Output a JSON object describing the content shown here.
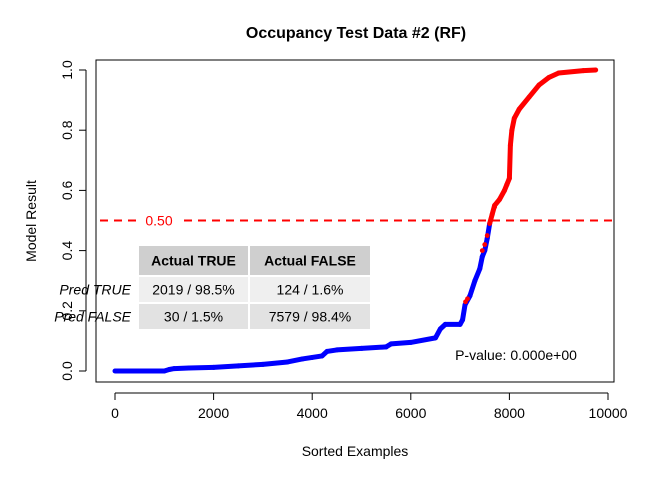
{
  "chart_data": {
    "type": "scatter",
    "title": "Occupancy Test Data #2 (RF)",
    "xlabel": "Sorted Examples",
    "ylabel": "Model Result",
    "xlim": [
      0,
      10000
    ],
    "ylim": [
      0,
      1
    ],
    "x_ticks": [
      0,
      2000,
      4000,
      6000,
      8000,
      10000
    ],
    "x_tick_labels": [
      "0",
      "2000",
      "4000",
      "6000",
      "8000",
      "10000"
    ],
    "y_ticks": [
      0.0,
      0.2,
      0.4,
      0.6,
      0.8,
      1.0
    ],
    "y_tick_labels": [
      "0.0",
      "0.2",
      "0.4",
      "0.6",
      "0.8",
      "1.0"
    ],
    "grid": false,
    "threshold": {
      "value": 0.5,
      "label": "0.50",
      "color": "#ff0000"
    },
    "curve_points": [
      [
        0,
        0.0
      ],
      [
        1000,
        0.0
      ],
      [
        1100,
        0.005
      ],
      [
        1200,
        0.008
      ],
      [
        1500,
        0.01
      ],
      [
        2000,
        0.012
      ],
      [
        2500,
        0.017
      ],
      [
        3000,
        0.022
      ],
      [
        3500,
        0.03
      ],
      [
        3800,
        0.04
      ],
      [
        4000,
        0.045
      ],
      [
        4200,
        0.05
      ],
      [
        4300,
        0.065
      ],
      [
        4500,
        0.07
      ],
      [
        5000,
        0.075
      ],
      [
        5500,
        0.08
      ],
      [
        5600,
        0.09
      ],
      [
        6000,
        0.095
      ],
      [
        6500,
        0.11
      ],
      [
        6600,
        0.14
      ],
      [
        6700,
        0.155
      ],
      [
        7000,
        0.155
      ],
      [
        7050,
        0.17
      ],
      [
        7100,
        0.22
      ],
      [
        7200,
        0.25
      ],
      [
        7300,
        0.3
      ],
      [
        7400,
        0.34
      ],
      [
        7450,
        0.38
      ],
      [
        7500,
        0.4
      ],
      [
        7550,
        0.44
      ],
      [
        7600,
        0.49
      ],
      [
        7650,
        0.52
      ],
      [
        7700,
        0.55
      ],
      [
        7800,
        0.57
      ],
      [
        7900,
        0.6
      ],
      [
        7950,
        0.62
      ],
      [
        8000,
        0.64
      ],
      [
        8020,
        0.75
      ],
      [
        8050,
        0.8
      ],
      [
        8100,
        0.84
      ],
      [
        8200,
        0.87
      ],
      [
        8400,
        0.91
      ],
      [
        8600,
        0.95
      ],
      [
        8800,
        0.975
      ],
      [
        9000,
        0.99
      ],
      [
        9500,
        0.998
      ],
      [
        9750,
        1.0
      ]
    ],
    "series": [
      {
        "name": "Actual FALSE",
        "color": "#0000ff"
      },
      {
        "name": "Actual TRUE",
        "color": "#ff0000"
      }
    ],
    "red_mix_points": [
      [
        7110,
        0.23
      ],
      [
        7150,
        0.24
      ],
      [
        7450,
        0.4
      ],
      [
        7500,
        0.42
      ],
      [
        7550,
        0.45
      ],
      [
        7620,
        0.5
      ],
      [
        7700,
        0.545
      ]
    ],
    "confusion_table": {
      "header": [
        "",
        "Actual TRUE",
        "Actual FALSE"
      ],
      "rows": [
        {
          "label": "Pred TRUE",
          "cells": [
            "2019 / 98.5%",
            "124 / 1.6%"
          ]
        },
        {
          "label": "Pred FALSE",
          "cells": [
            "30 / 1.5%",
            "7579 / 98.4%"
          ]
        }
      ]
    },
    "annotation": "P-value: 0.000e+00"
  }
}
